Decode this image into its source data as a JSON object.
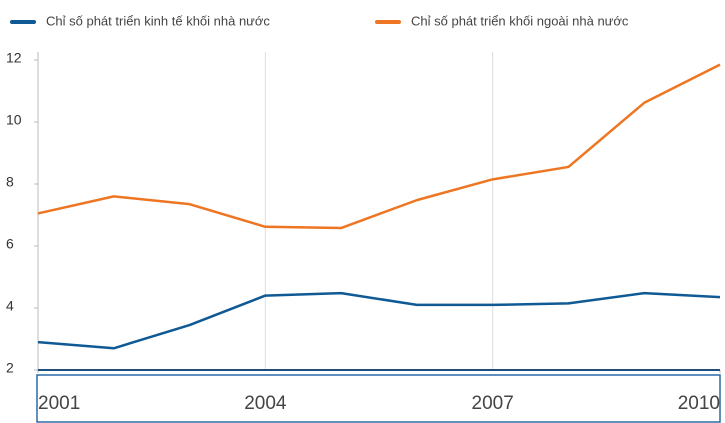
{
  "chart_data": {
    "type": "line",
    "x": [
      2001,
      2002,
      2003,
      2004,
      2005,
      2006,
      2007,
      2008,
      2009,
      2010
    ],
    "series": [
      {
        "name": "Chỉ số phát triển kinh tế khối nhà nước",
        "color": "#0f5a94",
        "values": [
          2.9,
          2.7,
          3.45,
          4.4,
          4.48,
          4.1,
          4.1,
          4.15,
          4.48,
          4.35
        ]
      },
      {
        "name": "Chỉ số phát triển khối ngoài nhà nước",
        "color": "#ee7623",
        "values": [
          7.05,
          7.6,
          7.35,
          6.62,
          6.58,
          7.48,
          8.15,
          8.55,
          10.62,
          11.85
        ]
      }
    ],
    "xlim": [
      2001,
      2010
    ],
    "xticks": [
      2001,
      2004,
      2007,
      2010
    ],
    "ylim": [
      2,
      12
    ],
    "yticks": [
      2,
      4,
      6,
      8,
      10,
      12
    ],
    "grid": "x"
  }
}
